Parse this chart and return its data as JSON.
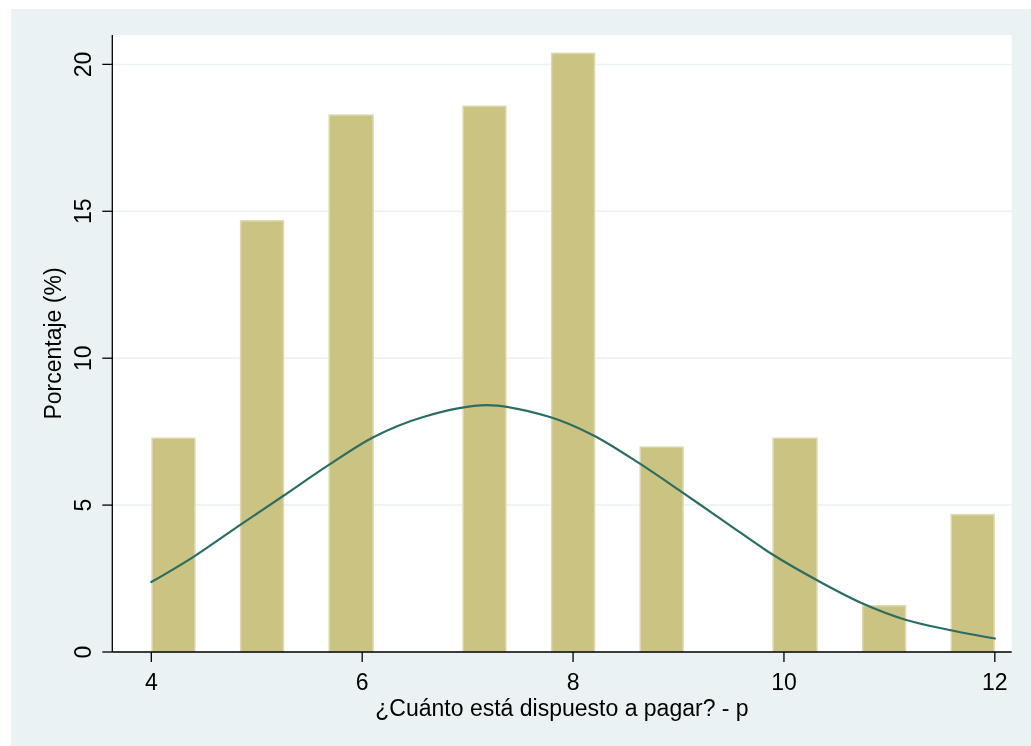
{
  "chart_data": {
    "type": "histogram",
    "xlabel": "¿Cuánto está dispuesto a pagar? - p",
    "ylabel": "Porcentaje (%)",
    "bins": [
      4,
      4.42,
      4.84,
      5.26,
      5.68,
      6.11,
      6.95,
      7.37,
      7.79,
      8.21,
      8.63,
      9.05,
      9.89,
      10.32,
      10.74,
      11.16,
      11.58,
      12
    ],
    "series": [
      {
        "color": "#cbc382",
        "values": [
          7.3,
          0,
          14.7,
          0,
          18.3,
          0,
          18.6,
          0,
          20.4,
          0,
          7.0,
          0,
          7.3,
          0,
          1.6,
          0,
          4.7
        ]
      },
      {
        "type": "line",
        "color": "#2b6d63",
        "x": [
          4,
          4.4,
          4.84,
          5.25,
          5.68,
          6.11,
          6.58,
          7.18,
          7.78,
          8.19,
          8.63,
          9.05,
          9.46,
          9.9,
          10.31,
          10.74,
          11.16,
          11.57,
          12
        ],
        "values": [
          2.38,
          3.24,
          4.32,
          5.31,
          6.36,
          7.32,
          8.0,
          8.4,
          8.0,
          7.38,
          6.42,
          5.4,
          4.38,
          3.3,
          2.45,
          1.66,
          1.09,
          0.75,
          0.46
        ]
      }
    ],
    "xlim": [
      3.63,
      12.16
    ],
    "ylim": [
      0,
      21
    ],
    "xticks": [
      4,
      6,
      8,
      10,
      12
    ],
    "yticks": [
      0,
      5,
      10,
      15,
      20
    ],
    "grid": "y"
  }
}
